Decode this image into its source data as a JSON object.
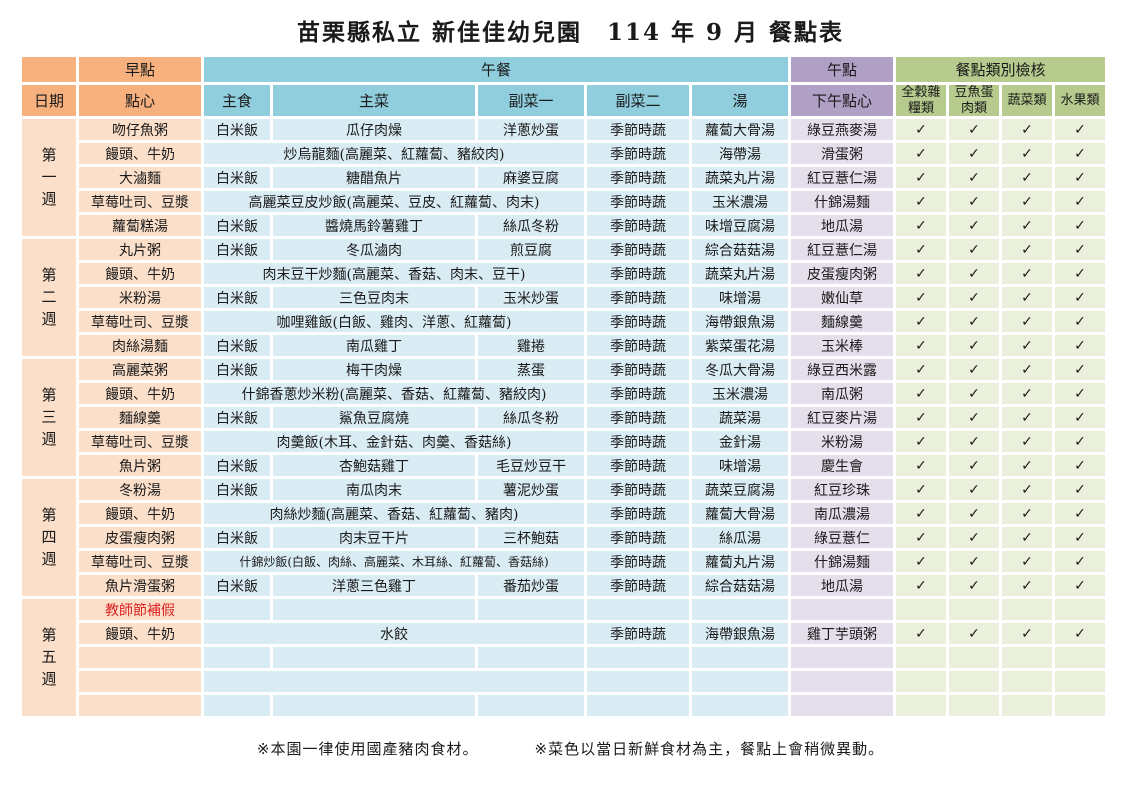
{
  "title": "苗栗縣私立 新佳佳幼兒園　114 年 9 月 餐點表",
  "header": {
    "date": "日期",
    "breakfast_group": "早點",
    "snack": "點心",
    "lunch_group": "午餐",
    "staple": "主食",
    "main_dish": "主菜",
    "side1": "副菜一",
    "side2": "副菜二",
    "soup": "湯",
    "afternoon_group": "午點",
    "afternoon_snack": "下午點心",
    "check_group": "餐點類別檢核",
    "check_cols": [
      "全穀雜糧類",
      "豆魚蛋肉類",
      "蔬菜類",
      "水果類"
    ]
  },
  "check_mark": "✓",
  "weeks": [
    {
      "label": "第一週",
      "rows": [
        {
          "snack": "吻仔魚粥",
          "merged": false,
          "staple": "白米飯",
          "main": "瓜仔肉燥",
          "side1": "洋蔥炒蛋",
          "side2": "季節時蔬",
          "soup": "蘿蔔大骨湯",
          "afternoon": "綠豆燕麥湯",
          "checks": [
            "✓",
            "✓",
            "✓",
            "✓"
          ]
        },
        {
          "snack": "饅頭、牛奶",
          "merged": true,
          "main": "炒烏龍麵(高麗菜、紅蘿蔔、豬絞肉)",
          "side2": "季節時蔬",
          "soup": "海帶湯",
          "afternoon": "滑蛋粥",
          "checks": [
            "✓",
            "✓",
            "✓",
            "✓"
          ]
        },
        {
          "snack": "大滷麵",
          "merged": false,
          "staple": "白米飯",
          "main": "糖醋魚片",
          "side1": "麻婆豆腐",
          "side2": "季節時蔬",
          "soup": "蔬菜丸片湯",
          "afternoon": "紅豆薏仁湯",
          "checks": [
            "✓",
            "✓",
            "✓",
            "✓"
          ]
        },
        {
          "snack": "草莓吐司、豆漿",
          "merged": true,
          "main": "高麗菜豆皮炒飯(高麗菜、豆皮、紅蘿蔔、肉末)",
          "side2": "季節時蔬",
          "soup": "玉米濃湯",
          "afternoon": "什錦湯麵",
          "checks": [
            "✓",
            "✓",
            "✓",
            "✓"
          ]
        },
        {
          "snack": "蘿蔔糕湯",
          "merged": false,
          "staple": "白米飯",
          "main": "醬燒馬鈴薯雞丁",
          "side1": "絲瓜冬粉",
          "side2": "季節時蔬",
          "soup": "味增豆腐湯",
          "afternoon": "地瓜湯",
          "checks": [
            "✓",
            "✓",
            "✓",
            "✓"
          ]
        }
      ]
    },
    {
      "label": "第二週",
      "rows": [
        {
          "snack": "丸片粥",
          "merged": false,
          "staple": "白米飯",
          "main": "冬瓜滷肉",
          "side1": "煎豆腐",
          "side2": "季節時蔬",
          "soup": "綜合菇菇湯",
          "afternoon": "紅豆薏仁湯",
          "checks": [
            "✓",
            "✓",
            "✓",
            "✓"
          ]
        },
        {
          "snack": "饅頭、牛奶",
          "merged": true,
          "main": "肉末豆干炒麵(高麗菜、香菇、肉末、豆干)",
          "side2": "季節時蔬",
          "soup": "蔬菜丸片湯",
          "afternoon": "皮蛋瘦肉粥",
          "checks": [
            "✓",
            "✓",
            "✓",
            "✓"
          ]
        },
        {
          "snack": "米粉湯",
          "merged": false,
          "staple": "白米飯",
          "main": "三色豆肉末",
          "side1": "玉米炒蛋",
          "side2": "季節時蔬",
          "soup": "味增湯",
          "afternoon": "嫩仙草",
          "checks": [
            "✓",
            "✓",
            "✓",
            "✓"
          ]
        },
        {
          "snack": "草莓吐司、豆漿",
          "merged": true,
          "main": "咖哩雞飯(白飯、雞肉、洋蔥、紅蘿蔔)",
          "side2": "季節時蔬",
          "soup": "海帶銀魚湯",
          "afternoon": "麵線羹",
          "checks": [
            "✓",
            "✓",
            "✓",
            "✓"
          ]
        },
        {
          "snack": "肉絲湯麵",
          "merged": false,
          "staple": "白米飯",
          "main": "南瓜雞丁",
          "side1": "雞捲",
          "side2": "季節時蔬",
          "soup": "紫菜蛋花湯",
          "afternoon": "玉米棒",
          "checks": [
            "✓",
            "✓",
            "✓",
            "✓"
          ]
        }
      ]
    },
    {
      "label": "第三週",
      "rows": [
        {
          "snack": "高麗菜粥",
          "merged": false,
          "staple": "白米飯",
          "main": "梅干肉燥",
          "side1": "蒸蛋",
          "side2": "季節時蔬",
          "soup": "冬瓜大骨湯",
          "afternoon": "綠豆西米露",
          "checks": [
            "✓",
            "✓",
            "✓",
            "✓"
          ]
        },
        {
          "snack": "饅頭、牛奶",
          "merged": true,
          "main": "什錦香蔥炒米粉(高麗菜、香菇、紅蘿蔔、豬絞肉)",
          "side2": "季節時蔬",
          "soup": "玉米濃湯",
          "afternoon": "南瓜粥",
          "checks": [
            "✓",
            "✓",
            "✓",
            "✓"
          ]
        },
        {
          "snack": "麵線羹",
          "merged": false,
          "staple": "白米飯",
          "main": "鯊魚豆腐燒",
          "side1": "絲瓜冬粉",
          "side2": "季節時蔬",
          "soup": "蔬菜湯",
          "afternoon": "紅豆麥片湯",
          "checks": [
            "✓",
            "✓",
            "✓",
            "✓"
          ]
        },
        {
          "snack": "草莓吐司、豆漿",
          "merged": true,
          "main": "肉羹飯(木耳、金針菇、肉羹、香菇絲)",
          "side2": "季節時蔬",
          "soup": "金針湯",
          "afternoon": "米粉湯",
          "checks": [
            "✓",
            "✓",
            "✓",
            "✓"
          ]
        },
        {
          "snack": "魚片粥",
          "merged": false,
          "staple": "白米飯",
          "main": "杏鮑菇雞丁",
          "side1": "毛豆炒豆干",
          "side2": "季節時蔬",
          "soup": "味增湯",
          "afternoon": "慶生會",
          "checks": [
            "✓",
            "✓",
            "✓",
            "✓"
          ]
        }
      ]
    },
    {
      "label": "第四週",
      "rows": [
        {
          "snack": "冬粉湯",
          "merged": false,
          "staple": "白米飯",
          "main": "南瓜肉末",
          "side1": "薯泥炒蛋",
          "side2": "季節時蔬",
          "soup": "蔬菜豆腐湯",
          "afternoon": "紅豆珍珠",
          "checks": [
            "✓",
            "✓",
            "✓",
            "✓"
          ]
        },
        {
          "snack": "饅頭、牛奶",
          "merged": true,
          "main": "肉絲炒麵(高麗菜、香菇、紅蘿蔔、豬肉)",
          "side2": "季節時蔬",
          "soup": "蘿蔔大骨湯",
          "afternoon": "南瓜濃湯",
          "checks": [
            "✓",
            "✓",
            "✓",
            "✓"
          ]
        },
        {
          "snack": "皮蛋瘦肉粥",
          "merged": false,
          "staple": "白米飯",
          "main": "肉末豆干片",
          "side1": "三杯鮑菇",
          "side2": "季節時蔬",
          "soup": "絲瓜湯",
          "afternoon": "綠豆薏仁",
          "checks": [
            "✓",
            "✓",
            "✓",
            "✓"
          ]
        },
        {
          "snack": "草莓吐司、豆漿",
          "merged": true,
          "main": "什錦炒飯(白飯、肉絲、高麗菜、木耳絲、紅蘿蔔、香菇絲)",
          "side2": "季節時蔬",
          "soup": "蘿蔔丸片湯",
          "afternoon": "什錦湯麵",
          "checks": [
            "✓",
            "✓",
            "✓",
            "✓"
          ]
        },
        {
          "snack": "魚片滑蛋粥",
          "merged": false,
          "staple": "白米飯",
          "main": "洋蔥三色雞丁",
          "side1": "番茄炒蛋",
          "side2": "季節時蔬",
          "soup": "綜合菇菇湯",
          "afternoon": "地瓜湯",
          "checks": [
            "✓",
            "✓",
            "✓",
            "✓"
          ]
        }
      ]
    },
    {
      "label": "第五週",
      "rows": [
        {
          "snack": "教師節補假",
          "holiday": true,
          "merged": false,
          "staple": "",
          "main": "",
          "side1": "",
          "side2": "",
          "soup": "",
          "afternoon": "",
          "checks": [
            "",
            "",
            "",
            ""
          ]
        },
        {
          "snack": "饅頭、牛奶",
          "merged": true,
          "main": "水餃",
          "side2": "季節時蔬",
          "soup": "海帶銀魚湯",
          "afternoon": "雞丁芋頭粥",
          "checks": [
            "✓",
            "✓",
            "✓",
            "✓"
          ]
        },
        {
          "snack": "",
          "merged": false,
          "staple": "",
          "main": "",
          "side1": "",
          "side2": "",
          "soup": "",
          "afternoon": "",
          "checks": [
            "",
            "",
            "",
            ""
          ]
        },
        {
          "snack": "",
          "merged": true,
          "main": "",
          "side2": "",
          "soup": "",
          "afternoon": "",
          "checks": [
            "",
            "",
            "",
            ""
          ]
        },
        {
          "snack": "",
          "merged": false,
          "staple": "",
          "main": "",
          "side1": "",
          "side2": "",
          "soup": "",
          "afternoon": "",
          "checks": [
            "",
            "",
            "",
            ""
          ]
        }
      ]
    }
  ],
  "notes": [
    "※本園一律使用國產豬肉食材。",
    "※菜色以當日新鮮食材為主，餐點上會稍微異動。"
  ],
  "colors": {
    "orange_header": "#f6b17e",
    "orange_light": "#fbdfc9",
    "blue_header": "#90cede",
    "blue_light": "#d9ecf4",
    "purple_header": "#b1a0c6",
    "purple_light": "#e5dfec",
    "green_header": "#b6cb8d",
    "green_light": "#eaf0db",
    "holiday_text": "#dd2222"
  }
}
